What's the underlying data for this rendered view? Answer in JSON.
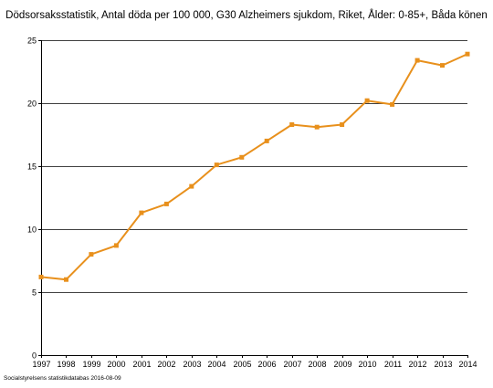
{
  "chart_data": {
    "type": "line",
    "title": "Dödsorsaksstatistik, Antal döda per 100 000, G30 Alzheimers sjukdom, Riket, Ålder: 0-85+, Båda könen",
    "xlabel": "",
    "ylabel": "",
    "categories": [
      "1997",
      "1998",
      "1999",
      "2000",
      "2001",
      "2002",
      "2003",
      "2004",
      "2005",
      "2006",
      "2007",
      "2008",
      "2009",
      "2010",
      "2011",
      "2012",
      "2013",
      "2014"
    ],
    "series": [
      {
        "values": [
          6.2,
          6.0,
          8.0,
          8.7,
          11.3,
          12.0,
          13.4,
          15.1,
          15.7,
          17.0,
          18.3,
          18.1,
          18.3,
          20.2,
          19.9,
          23.4,
          23.0,
          23.9
        ]
      }
    ],
    "ylim": [
      0,
      25
    ],
    "yticks": [
      "0",
      "5",
      "10",
      "15",
      "20",
      "25"
    ],
    "grid": true,
    "legend": "none",
    "colors": {
      "line": "#e8901c",
      "grid": "#000000",
      "axis": "#000000"
    }
  },
  "source_note": "Socialstyrelsens statistikdatabas 2016-08-09"
}
